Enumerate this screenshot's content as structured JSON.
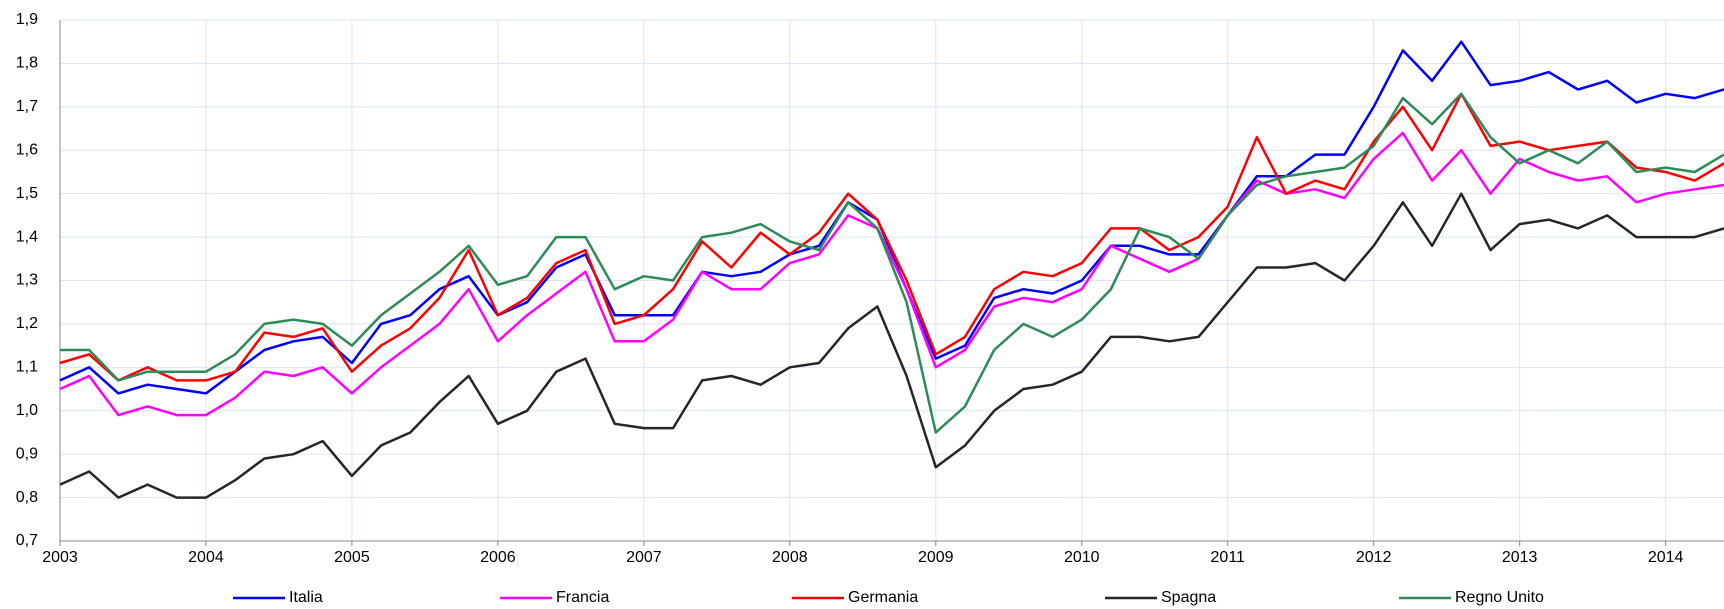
{
  "chart_data": {
    "type": "line",
    "x": [
      2003,
      2003.2,
      2003.4,
      2003.6,
      2003.8,
      2004,
      2004.2,
      2004.4,
      2004.6,
      2004.8,
      2005,
      2005.2,
      2005.4,
      2005.6,
      2005.8,
      2006,
      2006.2,
      2006.4,
      2006.6,
      2006.8,
      2007,
      2007.2,
      2007.4,
      2007.6,
      2007.8,
      2008,
      2008.2,
      2008.4,
      2008.6,
      2008.8,
      2009,
      2009.2,
      2009.4,
      2009.6,
      2009.8,
      2010,
      2010.2,
      2010.4,
      2010.6,
      2010.8,
      2011,
      2011.2,
      2011.4,
      2011.6,
      2011.8,
      2012,
      2012.2,
      2012.4,
      2012.6,
      2012.8,
      2013,
      2013.2,
      2013.4,
      2013.6,
      2013.8,
      2014,
      2014.2,
      2014.4
    ],
    "series": [
      {
        "name": "Italia",
        "color": "#0000ff",
        "values": [
          1.07,
          1.1,
          1.04,
          1.06,
          1.05,
          1.04,
          1.09,
          1.14,
          1.16,
          1.17,
          1.11,
          1.2,
          1.22,
          1.28,
          1.31,
          1.22,
          1.25,
          1.33,
          1.36,
          1.22,
          1.22,
          1.22,
          1.32,
          1.31,
          1.32,
          1.36,
          1.38,
          1.48,
          1.44,
          1.28,
          1.12,
          1.15,
          1.26,
          1.28,
          1.27,
          1.3,
          1.38,
          1.38,
          1.36,
          1.36,
          1.45,
          1.54,
          1.54,
          1.59,
          1.59,
          1.7,
          1.83,
          1.76,
          1.85,
          1.75,
          1.76,
          1.78,
          1.74,
          1.76,
          1.71,
          1.73,
          1.72,
          1.74
        ]
      },
      {
        "name": "Francia",
        "color": "#ff00ff",
        "values": [
          1.05,
          1.08,
          0.99,
          1.01,
          0.99,
          0.99,
          1.03,
          1.09,
          1.08,
          1.1,
          1.04,
          1.1,
          1.15,
          1.2,
          1.28,
          1.16,
          1.22,
          1.27,
          1.32,
          1.16,
          1.16,
          1.21,
          1.32,
          1.28,
          1.28,
          1.34,
          1.36,
          1.45,
          1.42,
          1.28,
          1.1,
          1.14,
          1.24,
          1.26,
          1.25,
          1.28,
          1.38,
          1.35,
          1.32,
          1.35,
          1.45,
          1.53,
          1.5,
          1.51,
          1.49,
          1.58,
          1.64,
          1.53,
          1.6,
          1.5,
          1.58,
          1.55,
          1.53,
          1.54,
          1.48,
          1.5,
          1.51,
          1.52
        ]
      },
      {
        "name": "Germania",
        "color": "#ff0000",
        "values": [
          1.11,
          1.13,
          1.07,
          1.1,
          1.07,
          1.07,
          1.09,
          1.18,
          1.17,
          1.19,
          1.09,
          1.15,
          1.19,
          1.26,
          1.37,
          1.22,
          1.26,
          1.34,
          1.37,
          1.2,
          1.22,
          1.28,
          1.39,
          1.33,
          1.41,
          1.36,
          1.41,
          1.5,
          1.44,
          1.3,
          1.13,
          1.17,
          1.28,
          1.32,
          1.31,
          1.34,
          1.42,
          1.42,
          1.37,
          1.4,
          1.47,
          1.63,
          1.5,
          1.53,
          1.51,
          1.62,
          1.7,
          1.6,
          1.73,
          1.61,
          1.62,
          1.6,
          1.61,
          1.62,
          1.56,
          1.55,
          1.53,
          1.57
        ]
      },
      {
        "name": "Spagna",
        "color": "#262626",
        "values": [
          0.83,
          0.86,
          0.8,
          0.83,
          0.8,
          0.8,
          0.84,
          0.89,
          0.9,
          0.93,
          0.85,
          0.92,
          0.95,
          1.02,
          1.08,
          0.97,
          1.0,
          1.09,
          1.12,
          0.97,
          0.96,
          0.96,
          1.07,
          1.08,
          1.06,
          1.1,
          1.11,
          1.19,
          1.24,
          1.08,
          0.87,
          0.92,
          1.0,
          1.05,
          1.06,
          1.09,
          1.17,
          1.17,
          1.16,
          1.17,
          1.25,
          1.33,
          1.33,
          1.34,
          1.3,
          1.38,
          1.48,
          1.38,
          1.5,
          1.37,
          1.43,
          1.44,
          1.42,
          1.45,
          1.4,
          1.4,
          1.4,
          1.42
        ]
      },
      {
        "name": "Regno Unito",
        "color": "#2e8b57",
        "values": [
          1.14,
          1.14,
          1.07,
          1.09,
          1.09,
          1.09,
          1.13,
          1.2,
          1.21,
          1.2,
          1.15,
          1.22,
          1.27,
          1.32,
          1.38,
          1.29,
          1.31,
          1.4,
          1.4,
          1.28,
          1.31,
          1.3,
          1.4,
          1.41,
          1.43,
          1.39,
          1.37,
          1.48,
          1.42,
          1.25,
          0.95,
          1.01,
          1.14,
          1.2,
          1.17,
          1.21,
          1.28,
          1.42,
          1.4,
          1.35,
          1.45,
          1.52,
          1.54,
          1.55,
          1.56,
          1.61,
          1.72,
          1.66,
          1.73,
          1.63,
          1.57,
          1.6,
          1.57,
          1.62,
          1.55,
          1.56,
          1.55,
          1.59
        ]
      }
    ],
    "xlim": [
      2003,
      2014.4
    ],
    "xticks": [
      2003,
      2004,
      2005,
      2006,
      2007,
      2008,
      2009,
      2010,
      2011,
      2012,
      2013,
      2014
    ],
    "ylim": [
      0.7,
      1.9
    ],
    "yticks": [
      {
        "value": 0.7,
        "label": "0,7"
      },
      {
        "value": 0.8,
        "label": "0,8"
      },
      {
        "value": 0.9,
        "label": "0,9"
      },
      {
        "value": 1.0,
        "label": "1,0"
      },
      {
        "value": 1.1,
        "label": "1,1"
      },
      {
        "value": 1.2,
        "label": "1,2"
      },
      {
        "value": 1.3,
        "label": "1,3"
      },
      {
        "value": 1.4,
        "label": "1,4"
      },
      {
        "value": 1.5,
        "label": "1,5"
      },
      {
        "value": 1.6,
        "label": "1,6"
      },
      {
        "value": 1.7,
        "label": "1,7"
      },
      {
        "value": 1.8,
        "label": "1,8"
      },
      {
        "value": 1.9,
        "label": "1,9"
      }
    ],
    "grid": true,
    "legend": "bottom"
  }
}
